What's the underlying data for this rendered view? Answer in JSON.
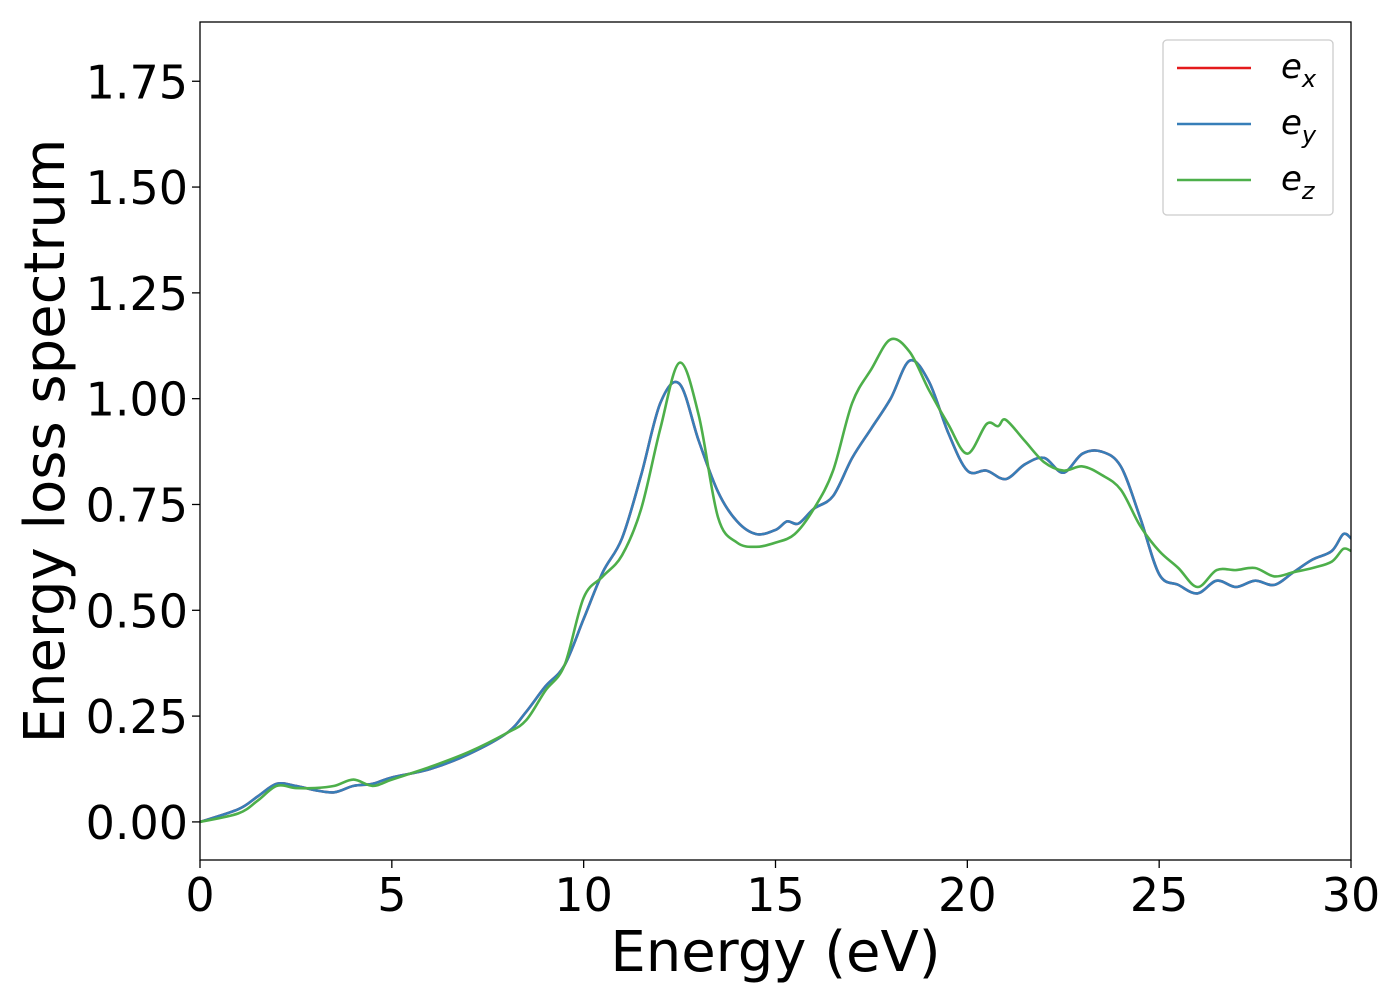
{
  "chart_data": {
    "type": "line",
    "xlabel": "Energy (eV)",
    "ylabel": "Energy loss spectrum",
    "xlim": [
      0,
      30
    ],
    "ylim": [
      -0.09,
      1.89
    ],
    "xticks": [
      0,
      5,
      10,
      15,
      20,
      25,
      30
    ],
    "xtick_labels": [
      "0",
      "5",
      "10",
      "15",
      "20",
      "25",
      "30"
    ],
    "yticks": [
      0,
      0.25,
      0.5,
      0.75,
      1.0,
      1.25,
      1.5,
      1.75
    ],
    "ytick_labels": [
      "0.00",
      "0.25",
      "0.50",
      "0.75",
      "1.00",
      "1.25",
      "1.50",
      "1.75"
    ],
    "grid": false,
    "legend_position": "top-right",
    "series": [
      {
        "name": "e",
        "sub": "x",
        "color": "#e41a1c",
        "x": [
          0,
          1,
          1.5,
          2,
          2.5,
          3,
          3.5,
          4,
          4.5,
          5,
          6,
          7,
          8,
          8.5,
          9,
          9.5,
          10,
          10.5,
          11,
          11.5,
          12,
          12.5,
          13,
          13.5,
          14,
          14.5,
          15,
          15.3,
          15.6,
          16,
          16.5,
          17,
          17.5,
          18,
          18.5,
          19,
          19.5,
          20,
          20.5,
          21,
          21.5,
          22,
          22.5,
          23,
          23.5,
          24,
          24.5,
          25,
          25.5,
          26,
          26.5,
          27,
          27.5,
          28,
          28.5,
          29,
          29.5,
          29.8,
          30
        ],
        "y": [
          0.0,
          0.03,
          0.06,
          0.09,
          0.085,
          0.075,
          0.07,
          0.085,
          0.09,
          0.105,
          0.125,
          0.16,
          0.21,
          0.26,
          0.32,
          0.37,
          0.48,
          0.59,
          0.67,
          0.82,
          0.99,
          1.035,
          0.9,
          0.78,
          0.71,
          0.68,
          0.69,
          0.71,
          0.705,
          0.74,
          0.77,
          0.86,
          0.93,
          1.0,
          1.09,
          1.04,
          0.92,
          0.83,
          0.83,
          0.81,
          0.845,
          0.86,
          0.825,
          0.87,
          0.875,
          0.84,
          0.72,
          0.585,
          0.56,
          0.54,
          0.57,
          0.555,
          0.57,
          0.56,
          0.59,
          0.62,
          0.64,
          0.68,
          0.67
        ]
      },
      {
        "name": "e",
        "sub": "y",
        "color": "#377eb8",
        "x": [
          0,
          1,
          1.5,
          2,
          2.5,
          3,
          3.5,
          4,
          4.5,
          5,
          6,
          7,
          8,
          8.5,
          9,
          9.5,
          10,
          10.5,
          11,
          11.5,
          12,
          12.5,
          13,
          13.5,
          14,
          14.5,
          15,
          15.3,
          15.6,
          16,
          16.5,
          17,
          17.5,
          18,
          18.5,
          19,
          19.5,
          20,
          20.5,
          21,
          21.5,
          22,
          22.5,
          23,
          23.5,
          24,
          24.5,
          25,
          25.5,
          26,
          26.5,
          27,
          27.5,
          28,
          28.5,
          29,
          29.5,
          29.8,
          30
        ],
        "y": [
          0.0,
          0.03,
          0.06,
          0.09,
          0.085,
          0.075,
          0.07,
          0.085,
          0.09,
          0.105,
          0.125,
          0.16,
          0.21,
          0.26,
          0.32,
          0.37,
          0.48,
          0.59,
          0.67,
          0.82,
          0.99,
          1.035,
          0.9,
          0.78,
          0.71,
          0.68,
          0.69,
          0.71,
          0.705,
          0.74,
          0.77,
          0.86,
          0.93,
          1.0,
          1.09,
          1.04,
          0.92,
          0.83,
          0.83,
          0.81,
          0.845,
          0.86,
          0.825,
          0.87,
          0.875,
          0.84,
          0.72,
          0.585,
          0.56,
          0.54,
          0.57,
          0.555,
          0.57,
          0.56,
          0.59,
          0.62,
          0.64,
          0.68,
          0.67
        ]
      },
      {
        "name": "e",
        "sub": "z",
        "color": "#4daf4a",
        "x": [
          0,
          1,
          1.5,
          2,
          2.5,
          3,
          3.5,
          4,
          4.5,
          5,
          6,
          7,
          8,
          8.5,
          9,
          9.5,
          10,
          10.5,
          11,
          11.5,
          12,
          12.5,
          13,
          13.5,
          14,
          14.5,
          15,
          15.5,
          16,
          16.5,
          17,
          17.5,
          18,
          18.5,
          19,
          19.5,
          20,
          20.5,
          20.8,
          21,
          21.5,
          22,
          22.5,
          23,
          23.5,
          24,
          24.5,
          25,
          25.5,
          26,
          26.5,
          27,
          27.5,
          28,
          28.5,
          29,
          29.5,
          29.8,
          30
        ],
        "y": [
          0.0,
          0.02,
          0.05,
          0.085,
          0.08,
          0.08,
          0.085,
          0.1,
          0.085,
          0.1,
          0.13,
          0.165,
          0.21,
          0.24,
          0.31,
          0.37,
          0.53,
          0.58,
          0.63,
          0.74,
          0.93,
          1.085,
          0.96,
          0.72,
          0.66,
          0.65,
          0.66,
          0.68,
          0.74,
          0.83,
          0.99,
          1.07,
          1.14,
          1.11,
          1.02,
          0.94,
          0.87,
          0.94,
          0.935,
          0.95,
          0.9,
          0.85,
          0.83,
          0.84,
          0.82,
          0.785,
          0.7,
          0.64,
          0.6,
          0.555,
          0.595,
          0.595,
          0.6,
          0.58,
          0.59,
          0.6,
          0.615,
          0.645,
          0.64
        ]
      }
    ]
  }
}
